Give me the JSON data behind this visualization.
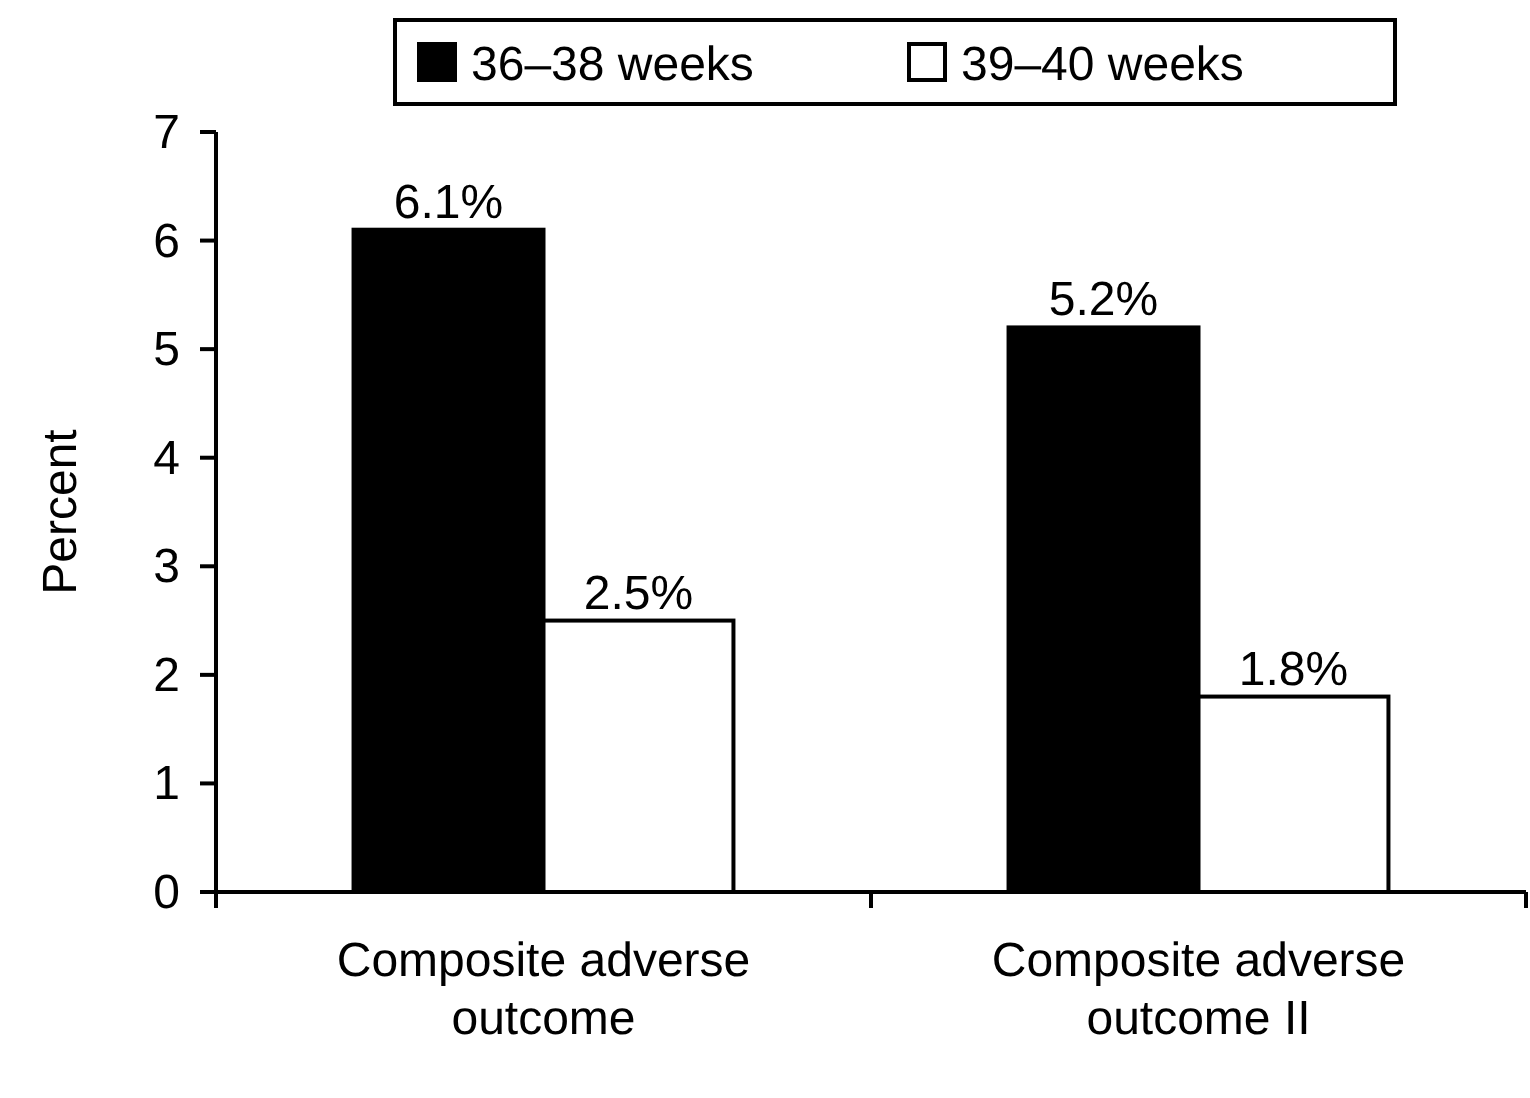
{
  "chart_data": {
    "type": "bar",
    "ylabel": "Percent",
    "categories": [
      "Composite adverse outcome",
      "Composite adverse outcome II"
    ],
    "series": [
      {
        "name": "36–38 weeks",
        "color": "#000000",
        "values": [
          6.1,
          5.2
        ],
        "value_labels": [
          "6.1%",
          "5.2%"
        ]
      },
      {
        "name": "39–40 weeks",
        "color": "#ffffff",
        "values": [
          2.5,
          1.8
        ],
        "value_labels": [
          "2.5%",
          "1.8%"
        ]
      }
    ],
    "ylim": [
      0,
      7
    ],
    "yticks": [
      0,
      1,
      2,
      3,
      4,
      5,
      6,
      7
    ],
    "grid": false,
    "legend": "top"
  }
}
